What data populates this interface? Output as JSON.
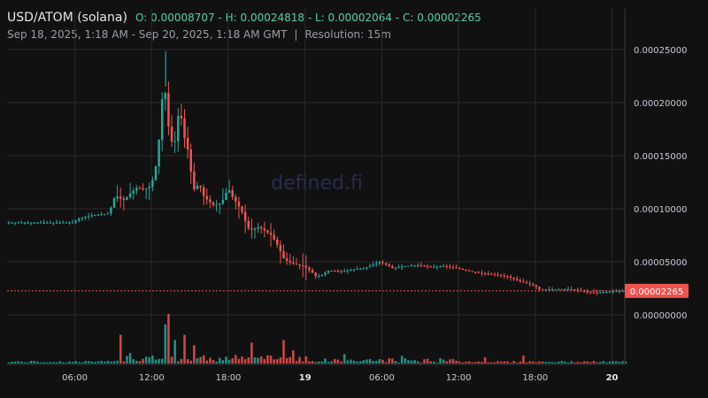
{
  "header": {
    "pair": "USD/ATOM (solana)",
    "ohlc": "O: 0.00008707 - H: 0.00024818 - L: 0.00002064 - C: 0.00002265",
    "range": "Sep 18, 2025, 1:18 AM - Sep 20, 2025, 1:18 AM GMT",
    "separator": "|",
    "resolution": "Resolution: 15m"
  },
  "watermark": "defined.fi",
  "colors": {
    "up": "#26a69a",
    "down": "#ef5350",
    "grid": "#2a2a2a",
    "price_line": "#ef5350",
    "bg": "#111111"
  },
  "chart_data": {
    "type": "candlestick",
    "yaxis": {
      "min": -3e-06,
      "max": 0.000265,
      "ticks": [
        "0.00000000",
        "0.00005000",
        "0.00010000",
        "0.00015000",
        "0.00020000",
        "0.00025000"
      ],
      "tick_values": [
        0,
        5e-05,
        0.0001,
        0.00015,
        0.0002,
        0.00025
      ],
      "position": "right"
    },
    "xaxis": {
      "ticks": [
        {
          "label": "06:00",
          "t": 6,
          "bold": false
        },
        {
          "label": "12:00",
          "t": 12,
          "bold": false
        },
        {
          "label": "18:00",
          "t": 18,
          "bold": false
        },
        {
          "label": "19",
          "t": 24,
          "bold": true
        },
        {
          "label": "06:00",
          "t": 30,
          "bold": false
        },
        {
          "label": "12:00",
          "t": 36,
          "bold": false
        },
        {
          "label": "18:00",
          "t": 42,
          "bold": false
        },
        {
          "label": "20",
          "t": 48,
          "bold": true
        }
      ],
      "start": 0.7,
      "end": 49.0
    },
    "last_price": {
      "value": 2.265e-05,
      "label": "0.00002265"
    },
    "open": 8.707e-05,
    "high": 0.00024818,
    "low": 2.064e-05,
    "close": 2.265e-05,
    "grid": true,
    "volume_panel": true,
    "price_path": [
      [
        0.7,
        8.7e-05
      ],
      [
        6.0,
        8.7e-05
      ],
      [
        6.5,
        9.1e-05
      ],
      [
        7.5,
        9.4e-05
      ],
      [
        8.5,
        9.5e-05
      ],
      [
        8.8,
        9.6e-05
      ],
      [
        9.3,
        0.000113
      ],
      [
        9.6,
        0.00011
      ],
      [
        10.0,
        0.000108
      ],
      [
        10.5,
        0.000115
      ],
      [
        11.0,
        0.00012
      ],
      [
        11.5,
        0.000118
      ],
      [
        12.0,
        0.000121
      ],
      [
        12.3,
        0.00013
      ],
      [
        12.6,
        0.00015
      ],
      [
        12.9,
        0.000195
      ],
      [
        13.1,
        0.000228
      ],
      [
        13.3,
        0.00019
      ],
      [
        13.6,
        0.000165
      ],
      [
        13.9,
        0.00016
      ],
      [
        14.1,
        0.000175
      ],
      [
        14.3,
        0.0002
      ],
      [
        14.6,
        0.00017
      ],
      [
        14.9,
        0.00016
      ],
      [
        15.2,
        0.000135
      ],
      [
        15.5,
        0.000115
      ],
      [
        15.8,
        0.000125
      ],
      [
        16.2,
        0.000112
      ],
      [
        16.5,
        0.000108
      ],
      [
        17.0,
        0.000103
      ],
      [
        17.5,
        0.000105
      ],
      [
        17.8,
        0.00011
      ],
      [
        18.1,
        0.00012
      ],
      [
        18.4,
        0.000112
      ],
      [
        18.8,
        0.000105
      ],
      [
        19.3,
        9.5e-05
      ],
      [
        19.6,
        8.2e-05
      ],
      [
        20.0,
        8e-05
      ],
      [
        20.5,
        8.3e-05
      ],
      [
        21.0,
        7.9e-05
      ],
      [
        21.5,
        7.5e-05
      ],
      [
        22.0,
        6.5e-05
      ],
      [
        22.5,
        5.2e-05
      ],
      [
        23.0,
        4.9e-05
      ],
      [
        23.5,
        4.7e-05
      ],
      [
        24.0,
        4.6e-05
      ],
      [
        24.5,
        4.2e-05
      ],
      [
        25.0,
        3.6e-05
      ],
      [
        25.5,
        3.8e-05
      ],
      [
        26.0,
        4.2e-05
      ],
      [
        27.0,
        4.1e-05
      ],
      [
        28.0,
        4.3e-05
      ],
      [
        29.0,
        4.5e-05
      ],
      [
        30.0,
        5e-05
      ],
      [
        30.5,
        4.7e-05
      ],
      [
        31.0,
        4.4e-05
      ],
      [
        32.0,
        4.6e-05
      ],
      [
        33.0,
        4.7e-05
      ],
      [
        34.0,
        4.5e-05
      ],
      [
        35.0,
        4.6e-05
      ],
      [
        36.0,
        4.4e-05
      ],
      [
        37.0,
        4.1e-05
      ],
      [
        38.0,
        3.9e-05
      ],
      [
        39.0,
        3.8e-05
      ],
      [
        40.0,
        3.6e-05
      ],
      [
        41.0,
        3.1e-05
      ],
      [
        42.0,
        2.8e-05
      ],
      [
        42.5,
        2.4e-05
      ],
      [
        43.0,
        2.4e-05
      ],
      [
        44.0,
        2.4e-05
      ],
      [
        45.0,
        2.4e-05
      ],
      [
        46.0,
        2.2e-05
      ],
      [
        47.0,
        2.1e-05
      ],
      [
        48.0,
        2.2e-05
      ],
      [
        49.0,
        2.27e-05
      ]
    ],
    "volume_spikes": [
      [
        9.4,
        0.55
      ],
      [
        12.9,
        0.75
      ],
      [
        13.2,
        0.95
      ],
      [
        14.5,
        0.55
      ],
      [
        13.7,
        0.45
      ],
      [
        15.2,
        0.35
      ],
      [
        10.2,
        0.2
      ],
      [
        19.8,
        0.4
      ],
      [
        22.3,
        0.45
      ],
      [
        23.0,
        0.25
      ],
      [
        27.0,
        0.18
      ],
      [
        31.5,
        0.15
      ],
      [
        38.0,
        0.12
      ],
      [
        41.0,
        0.15
      ]
    ]
  }
}
